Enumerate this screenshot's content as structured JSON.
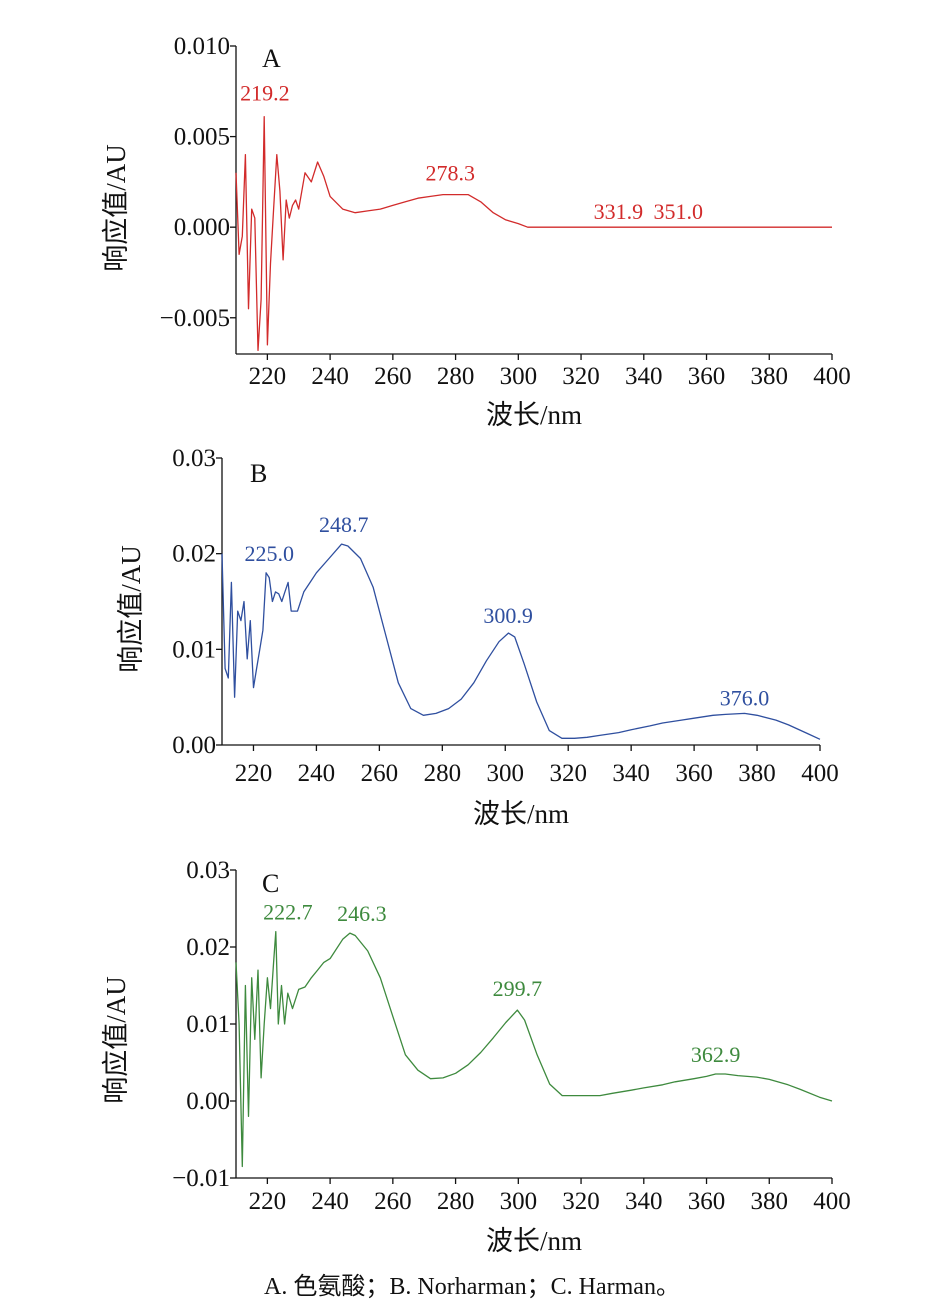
{
  "caption": "A. 色氨酸；B. Norharman；C. Harman。",
  "chart_data": [
    {
      "type": "line",
      "panel": "A",
      "color": "#d22b2b",
      "xlabel": "波长/nm",
      "ylabel": "响应值/AU",
      "xlim": [
        210,
        400
      ],
      "ylim": [
        -0.007,
        0.01
      ],
      "xticks": [
        "220",
        "240",
        "260",
        "280",
        "300",
        "320",
        "340",
        "360",
        "380",
        "400"
      ],
      "yticks": [
        "0.010",
        "0.005",
        "0.000",
        "−0.005"
      ],
      "ytick_values": [
        0.01,
        0.005,
        0.0,
        -0.005
      ],
      "annotations": [
        {
          "text": "219.2",
          "x": 219.2,
          "y": 0.0061
        },
        {
          "text": "278.3",
          "x": 278.3,
          "y": 0.0018
        },
        {
          "text": "331.9",
          "x": 331.9,
          "y": 0.0
        },
        {
          "text": "351.0",
          "x": 351.0,
          "y": 0.0
        }
      ],
      "series": [
        {
          "x": [
            210,
            211,
            212,
            213,
            214,
            215,
            216,
            217,
            218,
            219,
            220,
            221,
            222,
            223,
            224,
            225,
            226,
            227,
            228,
            229,
            230,
            232,
            234,
            236,
            238,
            240,
            244,
            248,
            252,
            256,
            260,
            264,
            268,
            272,
            276,
            280,
            284,
            288,
            292,
            296,
            300,
            303,
            306,
            310,
            320,
            330,
            340,
            350,
            360,
            370,
            380,
            390,
            400
          ],
          "y": [
            0.003,
            -0.0015,
            -0.0005,
            0.004,
            -0.0045,
            0.001,
            0.0005,
            -0.0068,
            -0.004,
            0.0061,
            -0.0065,
            -0.002,
            0.001,
            0.004,
            0.002,
            -0.0018,
            0.0015,
            0.0005,
            0.0012,
            0.0015,
            0.001,
            0.003,
            0.0025,
            0.0036,
            0.0028,
            0.0017,
            0.001,
            0.0008,
            0.0009,
            0.001,
            0.0012,
            0.0014,
            0.0016,
            0.0017,
            0.0018,
            0.0018,
            0.0018,
            0.0014,
            0.0008,
            0.0004,
            0.0002,
            0.0,
            0.0,
            0.0,
            0.0,
            0.0,
            0.0,
            0.0,
            0.0,
            0.0,
            0.0,
            0.0,
            0.0
          ]
        }
      ]
    },
    {
      "type": "line",
      "panel": "B",
      "color": "#2f4f9f",
      "xlabel": "波长/nm",
      "ylabel": "响应值/AU",
      "xlim": [
        210,
        400
      ],
      "ylim": [
        0.0,
        0.03
      ],
      "xticks": [
        "220",
        "240",
        "260",
        "280",
        "300",
        "320",
        "340",
        "360",
        "380",
        "400"
      ],
      "yticks": [
        "0.03",
        "0.02",
        "0.01",
        "0.00"
      ],
      "ytick_values": [
        0.03,
        0.02,
        0.01,
        0.0
      ],
      "annotations": [
        {
          "text": "225.0",
          "x": 225.0,
          "y": 0.018
        },
        {
          "text": "248.7",
          "x": 248.7,
          "y": 0.021
        },
        {
          "text": "300.9",
          "x": 300.9,
          "y": 0.0117
        },
        {
          "text": "376.0",
          "x": 376.0,
          "y": 0.0033
        }
      ],
      "series": [
        {
          "x": [
            210,
            211,
            212,
            213,
            214,
            215,
            216,
            217,
            218,
            219,
            220,
            221,
            222,
            223,
            224,
            225,
            226,
            227,
            228,
            229,
            230,
            231,
            232,
            234,
            236,
            238,
            240,
            244,
            248,
            250,
            254,
            258,
            262,
            266,
            270,
            274,
            278,
            282,
            286,
            290,
            294,
            298,
            301,
            303,
            306,
            310,
            314,
            318,
            322,
            326,
            330,
            336,
            340,
            346,
            350,
            356,
            360,
            366,
            370,
            376,
            380,
            386,
            390,
            396,
            400
          ],
          "y": [
            0.02,
            0.008,
            0.007,
            0.017,
            0.005,
            0.014,
            0.013,
            0.015,
            0.009,
            0.013,
            0.006,
            0.008,
            0.01,
            0.012,
            0.018,
            0.0175,
            0.015,
            0.016,
            0.0158,
            0.015,
            0.016,
            0.017,
            0.014,
            0.014,
            0.016,
            0.017,
            0.018,
            0.0195,
            0.021,
            0.0208,
            0.0195,
            0.0165,
            0.0115,
            0.0065,
            0.0038,
            0.0031,
            0.0033,
            0.0038,
            0.0048,
            0.0065,
            0.0088,
            0.0108,
            0.0117,
            0.0113,
            0.0085,
            0.0045,
            0.0015,
            0.0007,
            0.0007,
            0.0008,
            0.001,
            0.0013,
            0.0016,
            0.002,
            0.0023,
            0.0026,
            0.0028,
            0.0031,
            0.0032,
            0.0033,
            0.0031,
            0.0026,
            0.0021,
            0.0012,
            0.0006
          ]
        }
      ]
    },
    {
      "type": "line",
      "panel": "C",
      "color": "#3e8a3e",
      "xlabel": "波长/nm",
      "ylabel": "响应值/AU",
      "xlim": [
        210,
        400
      ],
      "ylim": [
        -0.01,
        0.03
      ],
      "xticks": [
        "220",
        "240",
        "260",
        "280",
        "300",
        "320",
        "340",
        "360",
        "380",
        "400"
      ],
      "yticks": [
        "0.03",
        "0.02",
        "0.01",
        "0.00",
        "−0.01"
      ],
      "ytick_values": [
        0.03,
        0.02,
        0.01,
        0.0,
        -0.01
      ],
      "annotations": [
        {
          "text": "222.7",
          "x": 222.7,
          "y": 0.022
        },
        {
          "text": "246.3",
          "x": 246.3,
          "y": 0.0218
        },
        {
          "text": "299.7",
          "x": 299.7,
          "y": 0.0118
        },
        {
          "text": "362.9",
          "x": 362.9,
          "y": 0.0035
        }
      ],
      "series": [
        {
          "x": [
            210,
            211,
            212,
            213,
            214,
            215,
            216,
            217,
            218,
            219,
            220,
            221,
            222,
            222.7,
            223.5,
            224.5,
            225.5,
            226.5,
            228,
            230,
            232,
            234,
            236,
            238,
            240,
            244,
            246.3,
            248,
            252,
            256,
            260,
            264,
            268,
            272,
            276,
            280,
            284,
            288,
            292,
            296,
            299.7,
            302,
            306,
            310,
            314,
            320,
            326,
            330,
            336,
            340,
            346,
            350,
            356,
            360,
            362.9,
            366,
            370,
            376,
            380,
            386,
            390,
            396,
            400
          ],
          "y": [
            0.018,
            0.01,
            -0.0085,
            0.015,
            -0.002,
            0.016,
            0.008,
            0.017,
            0.003,
            0.01,
            0.016,
            0.012,
            0.018,
            0.022,
            0.01,
            0.015,
            0.01,
            0.014,
            0.012,
            0.0145,
            0.0148,
            0.016,
            0.017,
            0.018,
            0.0185,
            0.021,
            0.0218,
            0.0215,
            0.0195,
            0.016,
            0.011,
            0.006,
            0.004,
            0.0029,
            0.003,
            0.0036,
            0.0047,
            0.0063,
            0.0082,
            0.0102,
            0.0118,
            0.0105,
            0.006,
            0.0022,
            0.0007,
            0.0007,
            0.0007,
            0.001,
            0.0014,
            0.0017,
            0.0021,
            0.0025,
            0.0029,
            0.0032,
            0.0035,
            0.0035,
            0.0033,
            0.0031,
            0.0028,
            0.0021,
            0.0015,
            0.0005,
            0.0
          ]
        }
      ]
    }
  ]
}
